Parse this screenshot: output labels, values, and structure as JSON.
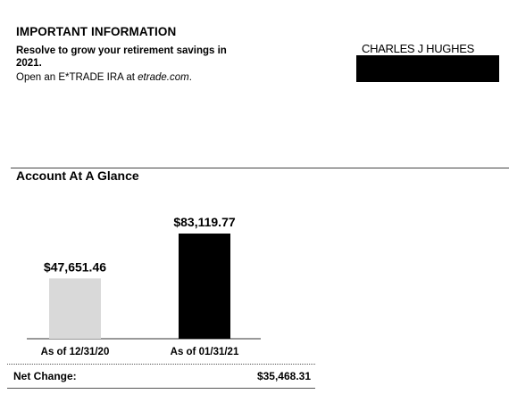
{
  "info": {
    "heading": "IMPORTANT INFORMATION",
    "line1": "Resolve to grow your retirement savings in 2021.",
    "line2_prefix": "Open an E*TRADE IRA at ",
    "line2_link": "etrade.com",
    "line2_suffix": "."
  },
  "account_holder": {
    "name": "CHARLES J HUGHES"
  },
  "section": {
    "title": "Account At A Glance"
  },
  "net_change": {
    "label": "Net Change:",
    "value": "$35,468.31"
  },
  "chart_data": {
    "type": "bar",
    "categories": [
      "As of 12/31/20",
      "As of 01/31/21"
    ],
    "values": [
      47651.46,
      83119.77
    ],
    "value_labels": [
      "$47,651.46",
      "$83,119.77"
    ],
    "colors": [
      "#d9d9d9",
      "#000000"
    ],
    "title": "",
    "xlabel": "",
    "ylabel": "",
    "ylim": [
      0,
      100000
    ],
    "grid": false
  }
}
